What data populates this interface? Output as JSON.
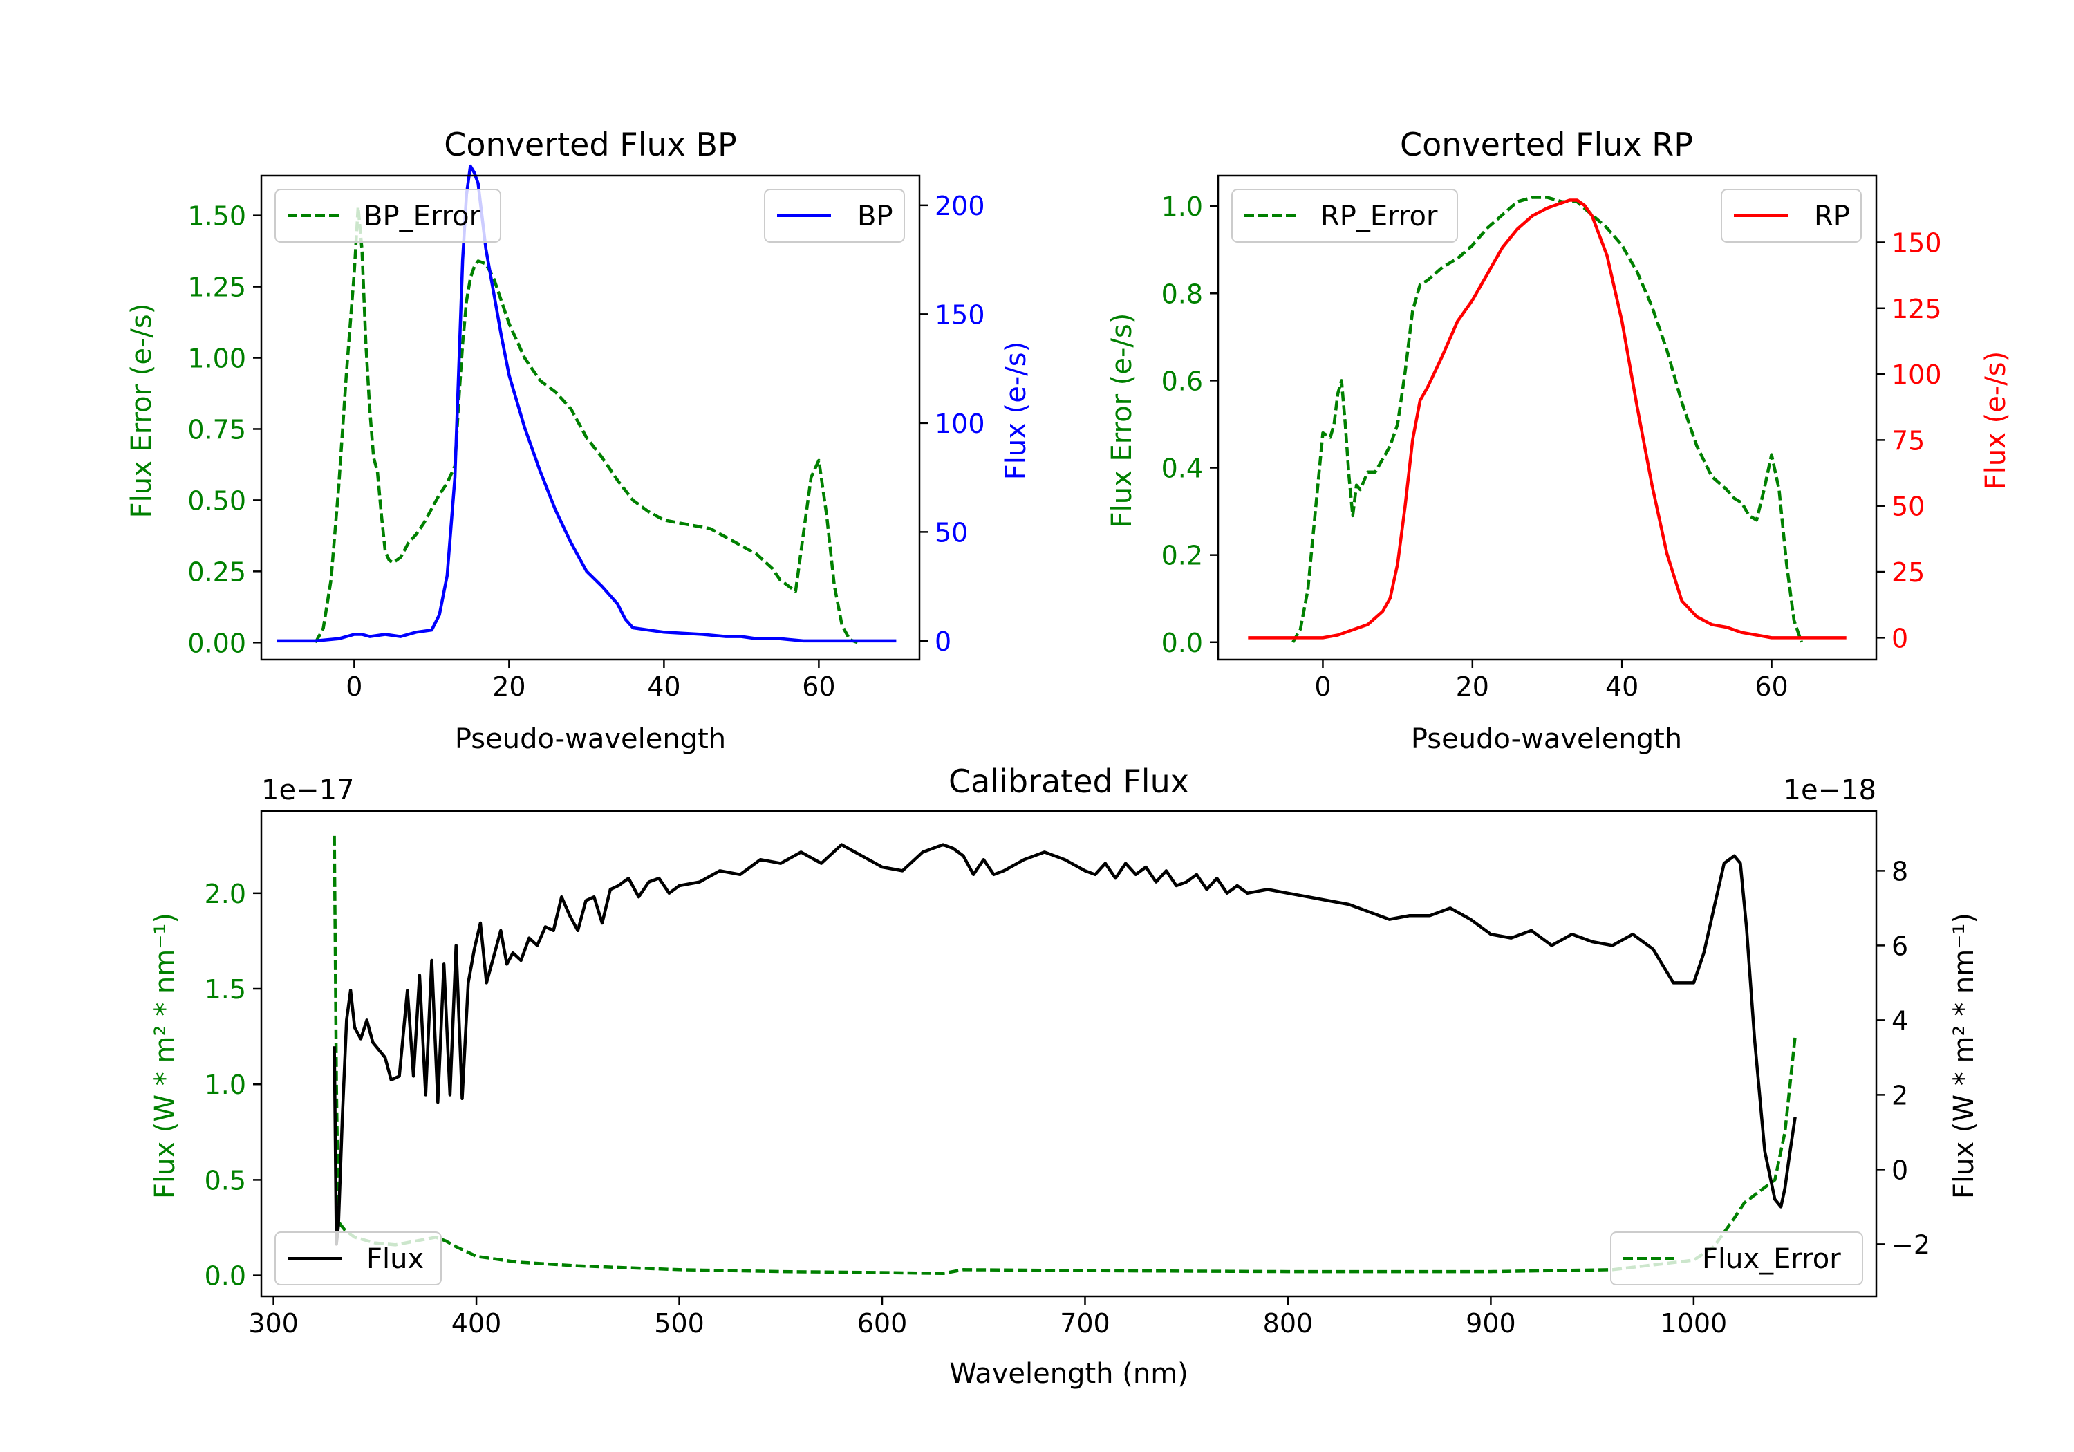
{
  "colors": {
    "bp": "#0000ff",
    "rp": "#ff0000",
    "error": "#008000",
    "flux": "#000000",
    "frame": "#000000"
  },
  "chart_data": [
    {
      "id": "bp",
      "type": "line",
      "title": "Converted Flux BP",
      "xlabel": "Pseudo-wavelength",
      "ylabel_left": "Flux Error (e-/s)",
      "ylabel_right": "Flux (e-/s)",
      "xlim": [
        -12,
        73
      ],
      "ylim_left": [
        -0.06,
        1.64
      ],
      "ylim_right": [
        -8.6,
        213.6
      ],
      "xticks": [
        0,
        20,
        40,
        60
      ],
      "yticks_left": [
        0.0,
        0.25,
        0.5,
        0.75,
        1.0,
        1.25,
        1.5
      ],
      "yticks_left_labels": [
        "0.00",
        "0.25",
        "0.50",
        "0.75",
        "1.00",
        "1.25",
        "1.50"
      ],
      "yticks_right": [
        0,
        50,
        100,
        150,
        200
      ],
      "yticks_right_labels": [
        "0",
        "50",
        "100",
        "150",
        "200"
      ],
      "series": [
        {
          "name": "BP_Error",
          "axis": "left",
          "style": "dashed",
          "color": "#008000",
          "x": [
            -5,
            -4,
            -3,
            -2,
            -1,
            0,
            0.5,
            1,
            1.5,
            2,
            2.5,
            3,
            3.5,
            4,
            4.5,
            5,
            6,
            7,
            8,
            9,
            10,
            11,
            12,
            13,
            13.5,
            14,
            14.5,
            15,
            15.5,
            16,
            17,
            18,
            19,
            20,
            22,
            24,
            26,
            28,
            30,
            32,
            34,
            36,
            38,
            40,
            42,
            44,
            46,
            48,
            50,
            52,
            54,
            55,
            56,
            57,
            58,
            59,
            60,
            61,
            62,
            63,
            64,
            65
          ],
          "y": [
            0.0,
            0.05,
            0.22,
            0.55,
            0.95,
            1.3,
            1.53,
            1.38,
            1.05,
            0.82,
            0.65,
            0.6,
            0.45,
            0.32,
            0.29,
            0.28,
            0.3,
            0.35,
            0.38,
            0.42,
            0.47,
            0.52,
            0.56,
            0.62,
            0.85,
            1.05,
            1.2,
            1.28,
            1.32,
            1.34,
            1.33,
            1.28,
            1.2,
            1.12,
            1.0,
            0.92,
            0.88,
            0.82,
            0.72,
            0.65,
            0.57,
            0.5,
            0.46,
            0.43,
            0.42,
            0.41,
            0.4,
            0.37,
            0.34,
            0.31,
            0.26,
            0.22,
            0.2,
            0.18,
            0.38,
            0.58,
            0.64,
            0.45,
            0.2,
            0.06,
            0.01,
            0.0
          ]
        },
        {
          "name": "BP",
          "axis": "right",
          "style": "solid",
          "color": "#0000ff",
          "x": [
            -10,
            -5,
            -2,
            0,
            1,
            2,
            4,
            6,
            8,
            10,
            11,
            12,
            13,
            13.5,
            14,
            14.5,
            15,
            15.5,
            16,
            16.5,
            17,
            18,
            19,
            20,
            22,
            24,
            26,
            28,
            30,
            32,
            34,
            35,
            36,
            38,
            40,
            45,
            48,
            50,
            52,
            55,
            58,
            60,
            63,
            66,
            70
          ],
          "y": [
            0,
            0,
            1,
            3,
            3,
            2,
            3,
            2,
            4,
            5,
            12,
            30,
            75,
            125,
            175,
            205,
            218,
            215,
            210,
            195,
            180,
            160,
            140,
            122,
            98,
            78,
            60,
            45,
            32,
            25,
            17,
            10,
            6,
            5,
            4,
            3,
            2,
            2,
            1,
            1,
            0,
            0,
            0,
            0,
            0
          ]
        }
      ],
      "legend": [
        {
          "label": "BP_Error",
          "style": "dashed",
          "color": "#008000",
          "loc": "upper-left"
        },
        {
          "label": "BP",
          "style": "solid",
          "color": "#0000ff",
          "loc": "upper-right"
        }
      ]
    },
    {
      "id": "rp",
      "type": "line",
      "title": "Converted Flux RP",
      "xlabel": "Pseudo-wavelength",
      "ylabel_left": "Flux Error (e-/s)",
      "ylabel_right": "Flux (e-/s)",
      "xlim": [
        -14,
        74
      ],
      "ylim_left": [
        -0.04,
        1.07
      ],
      "ylim_right": [
        -8.3,
        175.3
      ],
      "xticks": [
        0,
        20,
        40,
        60
      ],
      "yticks_left": [
        0.0,
        0.2,
        0.4,
        0.6,
        0.8,
        1.0
      ],
      "yticks_left_labels": [
        "0.0",
        "0.2",
        "0.4",
        "0.6",
        "0.8",
        "1.0"
      ],
      "yticks_right": [
        0,
        25,
        50,
        75,
        100,
        125,
        150
      ],
      "yticks_right_labels": [
        "0",
        "25",
        "50",
        "75",
        "100",
        "125",
        "150"
      ],
      "series": [
        {
          "name": "RP_Error",
          "axis": "left",
          "style": "dashed",
          "color": "#008000",
          "x": [
            -4,
            -3,
            -2,
            -1,
            0,
            1,
            1.5,
            2,
            2.5,
            3,
            3.5,
            4,
            4.5,
            5,
            6,
            7,
            8,
            9,
            10,
            11,
            12,
            13,
            14,
            16,
            18,
            20,
            22,
            24,
            26,
            28,
            30,
            32,
            34,
            36,
            38,
            40,
            42,
            44,
            46,
            48,
            50,
            52,
            54,
            55,
            56,
            57,
            58,
            59,
            60,
            61,
            62,
            63,
            64
          ],
          "y": [
            0.0,
            0.03,
            0.12,
            0.3,
            0.48,
            0.47,
            0.5,
            0.57,
            0.6,
            0.5,
            0.38,
            0.29,
            0.36,
            0.35,
            0.39,
            0.39,
            0.42,
            0.45,
            0.5,
            0.62,
            0.76,
            0.82,
            0.83,
            0.86,
            0.88,
            0.91,
            0.95,
            0.98,
            1.01,
            1.02,
            1.02,
            1.01,
            1.01,
            0.98,
            0.95,
            0.91,
            0.85,
            0.77,
            0.67,
            0.55,
            0.45,
            0.38,
            0.35,
            0.33,
            0.32,
            0.29,
            0.28,
            0.35,
            0.43,
            0.35,
            0.18,
            0.05,
            0.0
          ]
        },
        {
          "name": "RP",
          "axis": "right",
          "style": "solid",
          "color": "#ff0000",
          "x": [
            -10,
            -5,
            0,
            2,
            4,
            6,
            8,
            9,
            10,
            11,
            12,
            13,
            14,
            16,
            18,
            20,
            22,
            24,
            26,
            28,
            30,
            32,
            33,
            34,
            35,
            36,
            38,
            40,
            42,
            44,
            46,
            48,
            50,
            52,
            54,
            56,
            58,
            60,
            65,
            70
          ],
          "y": [
            0,
            0,
            0,
            1,
            3,
            5,
            10,
            15,
            28,
            50,
            75,
            90,
            95,
            107,
            120,
            128,
            138,
            148,
            155,
            160,
            163,
            165,
            166,
            166,
            164,
            160,
            145,
            120,
            88,
            58,
            32,
            14,
            8,
            5,
            4,
            2,
            1,
            0,
            0,
            0
          ]
        }
      ],
      "legend": [
        {
          "label": "RP_Error",
          "style": "dashed",
          "color": "#008000",
          "loc": "upper-left"
        },
        {
          "label": "RP",
          "style": "solid",
          "color": "#ff0000",
          "loc": "upper-right"
        }
      ]
    },
    {
      "id": "cal",
      "type": "line",
      "title": "Calibrated Flux",
      "xlabel": "Wavelength (nm)",
      "ylabel_left": "Flux (W * m² * nm⁻¹)",
      "ylabel_right": "Flux (W * m² * nm⁻¹)",
      "offset_left": "1e−17",
      "offset_right": "1e−18",
      "xlim": [
        294,
        1090
      ],
      "ylim_left": [
        -0.11,
        2.43
      ],
      "ylim_right": [
        -3.4,
        9.6
      ],
      "xticks": [
        300,
        400,
        500,
        600,
        700,
        800,
        900,
        1000
      ],
      "yticks_left": [
        0.0,
        0.5,
        1.0,
        1.5,
        2.0
      ],
      "yticks_left_labels": [
        "0.0",
        "0.5",
        "1.0",
        "1.5",
        "2.0"
      ],
      "yticks_right": [
        -2,
        0,
        2,
        4,
        6,
        8
      ],
      "yticks_right_labels": [
        "−2",
        "0",
        "2",
        "4",
        "6",
        "8"
      ],
      "series": [
        {
          "name": "Flux_Error",
          "axis": "left",
          "style": "dashed",
          "color": "#008000",
          "x": [
            330,
            331,
            332,
            335,
            340,
            350,
            360,
            370,
            380,
            385,
            390,
            400,
            420,
            450,
            500,
            550,
            600,
            630,
            640,
            700,
            800,
            900,
            960,
            1000,
            1010,
            1020,
            1025,
            1030,
            1040,
            1045,
            1050
          ],
          "y": [
            2.3,
            1.0,
            0.28,
            0.24,
            0.2,
            0.17,
            0.16,
            0.18,
            0.2,
            0.18,
            0.15,
            0.1,
            0.07,
            0.05,
            0.03,
            0.02,
            0.015,
            0.01,
            0.03,
            0.025,
            0.02,
            0.02,
            0.03,
            0.08,
            0.15,
            0.3,
            0.38,
            0.42,
            0.5,
            0.75,
            1.25
          ]
        },
        {
          "name": "Flux",
          "axis": "right",
          "style": "solid",
          "color": "#000000",
          "x": [
            330,
            331,
            332,
            334,
            336,
            338,
            340,
            343,
            346,
            349,
            352,
            355,
            358,
            362,
            366,
            369,
            372,
            375,
            378,
            381,
            384,
            387,
            390,
            393,
            396,
            399,
            402,
            405,
            408,
            412,
            415,
            418,
            422,
            426,
            430,
            434,
            438,
            442,
            446,
            450,
            454,
            458,
            462,
            466,
            470,
            475,
            480,
            485,
            490,
            495,
            500,
            510,
            520,
            530,
            540,
            550,
            560,
            570,
            580,
            590,
            600,
            610,
            620,
            630,
            635,
            640,
            645,
            650,
            655,
            660,
            670,
            680,
            690,
            700,
            705,
            710,
            715,
            720,
            725,
            730,
            735,
            740,
            745,
            750,
            755,
            760,
            765,
            770,
            775,
            780,
            790,
            800,
            810,
            820,
            830,
            840,
            850,
            860,
            870,
            880,
            890,
            900,
            910,
            920,
            930,
            940,
            950,
            960,
            970,
            975,
            980,
            990,
            1000,
            1005,
            1010,
            1015,
            1020,
            1023,
            1026,
            1030,
            1035,
            1040,
            1043,
            1045,
            1047,
            1050
          ],
          "y": [
            3.3,
            -2.0,
            -1.5,
            1.5,
            4.0,
            4.8,
            3.8,
            3.5,
            4.0,
            3.4,
            3.2,
            3.0,
            2.4,
            2.5,
            4.8,
            2.5,
            5.2,
            2.0,
            5.6,
            1.8,
            5.5,
            2.0,
            6.0,
            1.9,
            5.0,
            5.9,
            6.6,
            5.0,
            5.6,
            6.4,
            5.5,
            5.8,
            5.6,
            6.2,
            6.0,
            6.5,
            6.4,
            7.3,
            6.8,
            6.4,
            7.2,
            7.3,
            6.6,
            7.5,
            7.6,
            7.8,
            7.3,
            7.7,
            7.8,
            7.4,
            7.6,
            7.7,
            8.0,
            7.9,
            8.3,
            8.2,
            8.5,
            8.2,
            8.7,
            8.4,
            8.1,
            8.0,
            8.5,
            8.7,
            8.6,
            8.4,
            7.9,
            8.3,
            7.9,
            8.0,
            8.3,
            8.5,
            8.3,
            8.0,
            7.9,
            8.2,
            7.8,
            8.2,
            7.9,
            8.1,
            7.7,
            8.0,
            7.6,
            7.7,
            7.9,
            7.5,
            7.8,
            7.4,
            7.6,
            7.4,
            7.5,
            7.4,
            7.3,
            7.2,
            7.1,
            6.9,
            6.7,
            6.8,
            6.8,
            7.0,
            6.7,
            6.3,
            6.2,
            6.4,
            6.0,
            6.3,
            6.1,
            6.0,
            6.3,
            6.1,
            5.9,
            5.0,
            5.0,
            5.8,
            7.0,
            8.2,
            8.4,
            8.2,
            6.5,
            3.5,
            0.5,
            -0.8,
            -1.0,
            -0.5,
            0.3,
            1.4
          ]
        }
      ],
      "legend": [
        {
          "label": "Flux",
          "style": "solid",
          "color": "#000000",
          "loc": "lower-left"
        },
        {
          "label": "Flux_Error",
          "style": "dashed",
          "color": "#008000",
          "loc": "lower-right"
        }
      ]
    }
  ]
}
